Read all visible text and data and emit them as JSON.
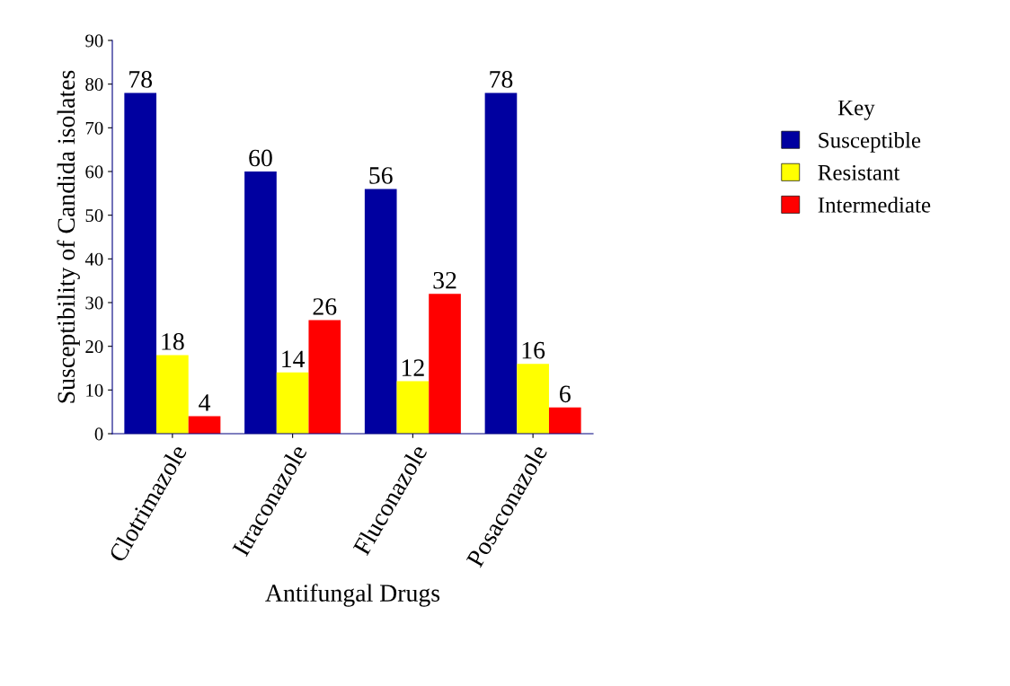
{
  "chart_data": {
    "type": "bar",
    "xlabel": "Antifungal Drugs",
    "ylabel": "Susceptibility of Candida isolates",
    "legend_title": "Key",
    "categories": [
      "Clotrimazole",
      "Itraconazole",
      "Fluconazole",
      "Posaconazole"
    ],
    "series": [
      {
        "name": "Susceptible",
        "color": "#0000a0",
        "values": [
          78,
          60,
          56,
          78
        ]
      },
      {
        "name": "Resistant",
        "color": "#ffff00",
        "values": [
          18,
          14,
          12,
          16
        ]
      },
      {
        "name": "Intermediate",
        "color": "#ff0000",
        "values": [
          4,
          26,
          32,
          6
        ]
      }
    ],
    "ylim": [
      0,
      90
    ],
    "yticks": [
      0,
      10,
      20,
      30,
      40,
      50,
      60,
      70,
      80,
      90
    ],
    "grid": false,
    "legend": "right",
    "data_labels": true
  }
}
